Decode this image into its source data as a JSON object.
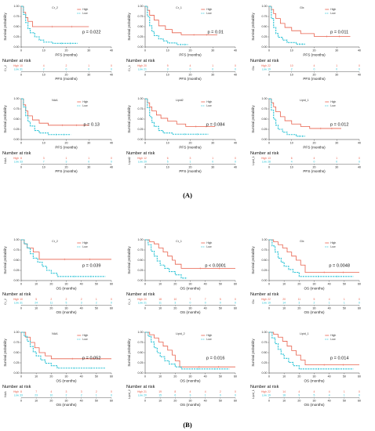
{
  "colors": {
    "high": "#e8604c",
    "low": "#2ec4d6",
    "axis": "#333333"
  },
  "legend_high": "High",
  "legend_low": "Low",
  "risk_header": "Number at risk",
  "y_axis_label": "Survival probability",
  "y_ticks": [
    "0.00",
    "0.25",
    "0.50",
    "0.75",
    "1.00"
  ],
  "panel_labels": [
    "(A)",
    "(B)"
  ],
  "chart_data": [
    {
      "type": "line",
      "panel": "A",
      "title": "Cr_2",
      "xlabel": "PFS (months)",
      "ylabel": "Survival probability",
      "xlim": [
        0,
        40
      ],
      "xticks": [
        0,
        10,
        20,
        30,
        40
      ],
      "ylim": [
        0,
        1
      ],
      "pvalue": "p = 0.022",
      "risk_label": "Cr_2",
      "series": [
        {
          "name": "High",
          "x": [
            0,
            1,
            2,
            3,
            5,
            30
          ],
          "y": [
            1.0,
            0.85,
            0.72,
            0.63,
            0.5,
            0.5
          ]
        },
        {
          "name": "Low",
          "x": [
            0,
            1,
            2,
            3,
            4,
            6,
            8,
            10,
            14,
            25
          ],
          "y": [
            1.0,
            0.8,
            0.6,
            0.45,
            0.35,
            0.25,
            0.17,
            0.12,
            0.09,
            0.09
          ]
        }
      ],
      "risk_high": [
        "10",
        "4",
        "2",
        "1",
        "0"
      ],
      "risk_low": [
        "31",
        "2",
        "0",
        "0",
        "0"
      ]
    },
    {
      "type": "line",
      "panel": "A",
      "title": "Cr_1",
      "xlabel": "PFS (months)",
      "ylabel": "Survival probability",
      "xlim": [
        0,
        40
      ],
      "xticks": [
        0,
        10,
        20,
        30,
        40
      ],
      "ylim": [
        0,
        1
      ],
      "pvalue": "p = 0.01",
      "risk_label": "Cr_1",
      "series": [
        {
          "name": "High",
          "x": [
            0,
            1,
            2,
            4,
            6,
            9,
            12,
            16,
            32
          ],
          "y": [
            1.0,
            0.9,
            0.78,
            0.66,
            0.52,
            0.43,
            0.35,
            0.3,
            0.3
          ]
        },
        {
          "name": "Low",
          "x": [
            0,
            1,
            2,
            3,
            4,
            6,
            8,
            10,
            14,
            19
          ],
          "y": [
            1.0,
            0.75,
            0.52,
            0.38,
            0.28,
            0.2,
            0.15,
            0.1,
            0.06,
            0.06
          ]
        }
      ],
      "risk_high": [
        "20",
        "9",
        "4",
        "1",
        "0"
      ],
      "risk_low": [
        "21",
        "3",
        "0",
        "0",
        "0"
      ]
    },
    {
      "type": "line",
      "panel": "A",
      "title": "Glx",
      "xlabel": "PFS (months)",
      "ylabel": "Survival probability",
      "xlim": [
        0,
        40
      ],
      "xticks": [
        0,
        10,
        20,
        30,
        40
      ],
      "ylim": [
        0,
        1
      ],
      "pvalue": "p = 0.011",
      "risk_label": "Glx",
      "series": [
        {
          "name": "High",
          "x": [
            0,
            1,
            2,
            3,
            5,
            7,
            10,
            14,
            20,
            36
          ],
          "y": [
            1.0,
            0.92,
            0.82,
            0.7,
            0.58,
            0.48,
            0.4,
            0.33,
            0.26,
            0.26
          ]
        },
        {
          "name": "Low",
          "x": [
            0,
            1,
            2,
            3,
            4,
            6,
            8,
            12,
            16
          ],
          "y": [
            1.0,
            0.7,
            0.48,
            0.33,
            0.24,
            0.17,
            0.11,
            0.07,
            0.07
          ]
        }
      ],
      "risk_high": [
        "22",
        "10",
        "4",
        "1",
        "0"
      ],
      "risk_low": [
        "19",
        "2",
        "0",
        "0",
        "0"
      ]
    },
    {
      "type": "line",
      "panel": "A",
      "title": "NAA",
      "xlabel": "PFS (months)",
      "ylabel": "Survival probability",
      "xlim": [
        0,
        40
      ],
      "xticks": [
        0,
        10,
        20,
        30,
        40
      ],
      "ylim": [
        0,
        1
      ],
      "pvalue": "p = 0.13",
      "risk_label": "NAA",
      "series": [
        {
          "name": "High",
          "x": [
            0,
            1,
            2,
            3,
            5,
            8,
            12,
            30
          ],
          "y": [
            1.0,
            0.85,
            0.7,
            0.58,
            0.48,
            0.4,
            0.35,
            0.35
          ]
        },
        {
          "name": "Low",
          "x": [
            0,
            1,
            2,
            3,
            4,
            6,
            8,
            12,
            22
          ],
          "y": [
            1.0,
            0.8,
            0.58,
            0.44,
            0.33,
            0.22,
            0.16,
            0.12,
            0.12
          ]
        }
      ],
      "risk_high": [
        "8",
        "3",
        "1",
        "1",
        "0"
      ],
      "risk_low": [
        "33",
        "7",
        "3",
        "0",
        "0"
      ]
    },
    {
      "type": "line",
      "panel": "A",
      "title": "Lipid2",
      "xlabel": "PFS (months)",
      "ylabel": "Survival probability",
      "xlim": [
        0,
        40
      ],
      "xticks": [
        0,
        10,
        20,
        30,
        40
      ],
      "ylim": [
        0,
        1
      ],
      "pvalue": "p = 0.084",
      "risk_label": "Lipid2",
      "series": [
        {
          "name": "High",
          "x": [
            0,
            1,
            2,
            3,
            5,
            7,
            10,
            14,
            18,
            31
          ],
          "y": [
            1.0,
            0.9,
            0.8,
            0.7,
            0.6,
            0.52,
            0.45,
            0.38,
            0.32,
            0.32
          ]
        },
        {
          "name": "Low",
          "x": [
            0,
            1,
            2,
            3,
            4,
            6,
            8,
            12,
            28
          ],
          "y": [
            1.0,
            0.78,
            0.56,
            0.42,
            0.32,
            0.22,
            0.16,
            0.13,
            0.13
          ]
        }
      ],
      "risk_high": [
        "12",
        "6",
        "3",
        "1",
        "0"
      ],
      "risk_low": [
        "29",
        "5",
        "1",
        "0",
        "0"
      ]
    },
    {
      "type": "line",
      "panel": "A",
      "title": "Lipid_1",
      "xlabel": "PFS (months)",
      "ylabel": "Survival probability",
      "xlim": [
        0,
        40
      ],
      "xticks": [
        0,
        10,
        20,
        30,
        40
      ],
      "ylim": [
        0,
        1
      ],
      "pvalue": "p = 0.012",
      "risk_label": "Lipid_1",
      "series": [
        {
          "name": "High",
          "x": [
            0,
            1,
            2,
            3,
            5,
            7,
            10,
            14,
            18,
            32
          ],
          "y": [
            1.0,
            0.9,
            0.8,
            0.68,
            0.56,
            0.46,
            0.38,
            0.32,
            0.27,
            0.27
          ]
        },
        {
          "name": "Low",
          "x": [
            0,
            1,
            2,
            3,
            4,
            6,
            8,
            12,
            16
          ],
          "y": [
            1.0,
            0.72,
            0.5,
            0.35,
            0.25,
            0.18,
            0.12,
            0.08,
            0.08
          ]
        }
      ],
      "risk_high": [
        "13",
        "6",
        "4",
        "1",
        "0"
      ],
      "risk_low": [
        "28",
        "4",
        "0",
        "0",
        "0"
      ]
    },
    {
      "type": "line",
      "panel": "B",
      "title": "Cr_2",
      "xlabel": "OS (months)",
      "ylabel": "Survival probability",
      "xlim": [
        0,
        60
      ],
      "xticks": [
        0,
        10,
        20,
        30,
        40,
        50,
        60
      ],
      "ylim": [
        0,
        1
      ],
      "pvalue": "p = 0.039",
      "risk_label": "Cr_2",
      "series": [
        {
          "name": "High",
          "x": [
            0,
            2,
            4,
            8,
            12,
            60
          ],
          "y": [
            1.0,
            0.9,
            0.8,
            0.7,
            0.52,
            0.52
          ]
        },
        {
          "name": "Low",
          "x": [
            0,
            2,
            4,
            6,
            8,
            11,
            14,
            17,
            20,
            24,
            56
          ],
          "y": [
            1.0,
            0.9,
            0.8,
            0.66,
            0.55,
            0.45,
            0.35,
            0.25,
            0.18,
            0.1,
            0.1
          ]
        }
      ],
      "risk_high": [
        "10",
        "5",
        "2",
        "2",
        "2",
        "1",
        "0"
      ],
      "risk_low": [
        "31",
        "24",
        "11",
        "5",
        "3",
        "2",
        "0"
      ]
    },
    {
      "type": "line",
      "panel": "B",
      "title": "Cr_1",
      "xlabel": "OS (months)",
      "ylabel": "Survival probability",
      "xlim": [
        0,
        60
      ],
      "xticks": [
        0,
        10,
        20,
        30,
        40,
        50,
        60
      ],
      "ylim": [
        0,
        1
      ],
      "pvalue": "p < 0.0001",
      "risk_label": "Cr_1",
      "series": [
        {
          "name": "High",
          "x": [
            0,
            3,
            6,
            9,
            12,
            15,
            18,
            20,
            24,
            60
          ],
          "y": [
            1.0,
            0.95,
            0.9,
            0.8,
            0.7,
            0.6,
            0.5,
            0.4,
            0.3,
            0.3
          ]
        },
        {
          "name": "Low",
          "x": [
            0,
            2,
            4,
            6,
            8,
            10,
            13,
            16,
            20,
            24,
            28
          ],
          "y": [
            1.0,
            0.88,
            0.72,
            0.6,
            0.48,
            0.38,
            0.3,
            0.22,
            0.14,
            0.06,
            0.06
          ]
        }
      ],
      "risk_high": [
        "20",
        "18",
        "10",
        "7",
        "7",
        "5",
        "0"
      ],
      "risk_low": [
        "21",
        "11",
        "3",
        "0",
        "0",
        "0",
        "0"
      ]
    },
    {
      "type": "line",
      "panel": "B",
      "title": "Glx",
      "xlabel": "OS (months)",
      "ylabel": "Survival probability",
      "xlim": [
        0,
        60
      ],
      "xticks": [
        0,
        10,
        20,
        30,
        40,
        50,
        60
      ],
      "ylim": [
        0,
        1
      ],
      "pvalue": "p = 0.0048",
      "risk_label": "Glx",
      "series": [
        {
          "name": "High",
          "x": [
            0,
            3,
            6,
            9,
            12,
            15,
            18,
            21,
            24,
            60
          ],
          "y": [
            1.0,
            0.95,
            0.88,
            0.8,
            0.7,
            0.6,
            0.5,
            0.38,
            0.2,
            0.2
          ]
        },
        {
          "name": "Low",
          "x": [
            0,
            2,
            4,
            6,
            8,
            10,
            13,
            16,
            20,
            56
          ],
          "y": [
            1.0,
            0.85,
            0.7,
            0.55,
            0.45,
            0.35,
            0.27,
            0.2,
            0.1,
            0.1
          ]
        }
      ],
      "risk_high": [
        "22",
        "20",
        "11",
        "5",
        "4",
        "1",
        "0"
      ],
      "risk_low": [
        "19",
        "14",
        "3",
        "2",
        "1",
        "1",
        "0"
      ]
    },
    {
      "type": "line",
      "panel": "B",
      "title": "NAA",
      "xlabel": "OS (months)",
      "ylabel": "Survival probability",
      "xlim": [
        0,
        60
      ],
      "xticks": [
        0,
        10,
        20,
        30,
        40,
        50,
        60
      ],
      "ylim": [
        0,
        1
      ],
      "pvalue": "p = 0.052",
      "risk_label": "NAA",
      "series": [
        {
          "name": "High",
          "x": [
            0,
            3,
            6,
            9,
            12,
            16,
            20,
            60
          ],
          "y": [
            1.0,
            0.88,
            0.75,
            0.62,
            0.5,
            0.42,
            0.35,
            0.35
          ]
        },
        {
          "name": "Low",
          "x": [
            0,
            2,
            4,
            6,
            8,
            10,
            13,
            16,
            20,
            24,
            56
          ],
          "y": [
            1.0,
            0.9,
            0.78,
            0.65,
            0.52,
            0.42,
            0.32,
            0.24,
            0.18,
            0.12,
            0.12
          ]
        }
      ],
      "risk_high": [
        "8",
        "7",
        "4",
        "3",
        "3",
        "2",
        "0"
      ],
      "risk_low": [
        "33",
        "23",
        "10",
        "2",
        "2",
        "1",
        "0"
      ]
    },
    {
      "type": "line",
      "panel": "B",
      "title": "Lipid_2",
      "xlabel": "OS (months)",
      "ylabel": "Survival probability",
      "xlim": [
        0,
        60
      ],
      "xticks": [
        0,
        10,
        20,
        30,
        40,
        50,
        60
      ],
      "ylim": [
        0,
        1
      ],
      "pvalue": "p = 0.016",
      "risk_label": "Lipid_2",
      "series": [
        {
          "name": "High",
          "x": [
            0,
            3,
            6,
            9,
            12,
            15,
            18,
            20,
            23,
            60
          ],
          "y": [
            1.0,
            0.94,
            0.86,
            0.76,
            0.66,
            0.56,
            0.44,
            0.3,
            0.15,
            0.15
          ]
        },
        {
          "name": "Low",
          "x": [
            0,
            2,
            4,
            6,
            8,
            10,
            13,
            16,
            20,
            24,
            56
          ],
          "y": [
            1.0,
            0.9,
            0.76,
            0.62,
            0.5,
            0.4,
            0.3,
            0.22,
            0.15,
            0.1,
            0.1
          ]
        }
      ],
      "risk_high": [
        "21",
        "19",
        "8",
        "4",
        "4",
        "2",
        "0"
      ],
      "risk_low": [
        "20",
        "15",
        "6",
        "3",
        "1",
        "0",
        "0"
      ]
    },
    {
      "type": "line",
      "panel": "B",
      "title": "Lipid_1",
      "xlabel": "OS (months)",
      "ylabel": "Survival probability",
      "xlim": [
        0,
        60
      ],
      "xticks": [
        0,
        10,
        20,
        30,
        40,
        50,
        60
      ],
      "ylim": [
        0,
        1
      ],
      "pvalue": "p = 0.014",
      "risk_label": "Lipid_1",
      "series": [
        {
          "name": "High",
          "x": [
            0,
            3,
            6,
            9,
            12,
            15,
            18,
            21,
            24,
            60
          ],
          "y": [
            1.0,
            0.95,
            0.88,
            0.78,
            0.66,
            0.55,
            0.44,
            0.32,
            0.2,
            0.2
          ]
        },
        {
          "name": "Low",
          "x": [
            0,
            2,
            4,
            6,
            8,
            10,
            13,
            16,
            20,
            56
          ],
          "y": [
            1.0,
            0.86,
            0.72,
            0.58,
            0.46,
            0.36,
            0.26,
            0.18,
            0.1,
            0.1
          ]
        }
      ],
      "risk_high": [
        "22",
        "14",
        "4",
        "4",
        "4",
        "1",
        "0"
      ],
      "risk_low": [
        "19",
        "18",
        "9",
        "5",
        "4",
        "1",
        "0"
      ]
    }
  ]
}
